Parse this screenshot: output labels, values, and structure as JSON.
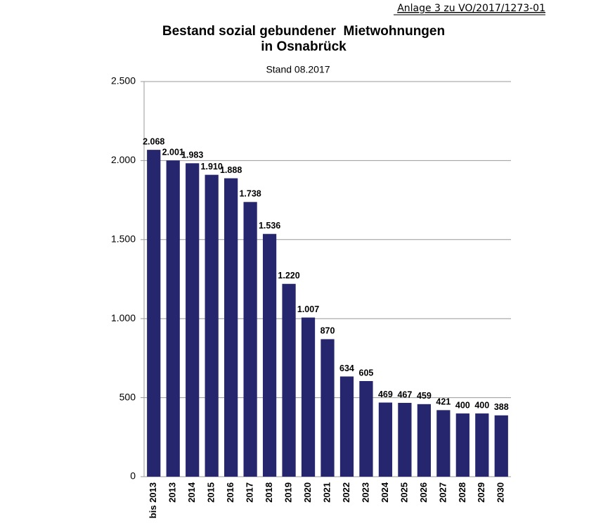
{
  "chart_data": {
    "type": "bar",
    "annotation": "Anlage 3 zu VO/2017/1273-01",
    "title": [
      "Bestand sozial gebundener  Mietwohnungen",
      "in Osnabrück"
    ],
    "subtitle": "Stand 08.2017",
    "categories": [
      "bis 2013",
      "2013",
      "2014",
      "2015",
      "2016",
      "2017",
      "2018",
      "2019",
      "2020",
      "2021",
      "2022",
      "2023",
      "2024",
      "2025",
      "2026",
      "2027",
      "2028",
      "2029",
      "2030"
    ],
    "values": [
      2068,
      2001,
      1983,
      1910,
      1888,
      1738,
      1536,
      1220,
      1007,
      870,
      634,
      605,
      469,
      467,
      459,
      421,
      400,
      400,
      388
    ],
    "value_labels": [
      "2.068",
      "2.001",
      "1.983",
      "1.910",
      "1.888",
      "1.738",
      "1.536",
      "1.220",
      "1.007",
      "870",
      "634",
      "605",
      "469",
      "467",
      "459",
      "421",
      "400",
      "400",
      "388"
    ],
    "color": "#26266e",
    "ylim": [
      0,
      2500
    ],
    "yticks": [
      0,
      500,
      {
        "value": 1000,
        "label": "1.000"
      },
      {
        "value": 1500,
        "label": "1.500"
      },
      {
        "value": 2000,
        "label": "2.000"
      },
      {
        "value": 2500,
        "label": "2.500"
      }
    ],
    "grid": true
  }
}
